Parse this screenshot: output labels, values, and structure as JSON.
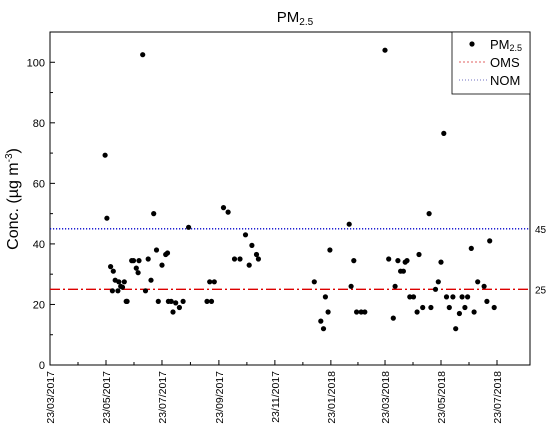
{
  "chart_data": {
    "type": "scatter",
    "title_main": "PM",
    "title_sub": "2.5",
    "ylabel_main": "Conc. (µg m",
    "ylabel_sup": "-3",
    "ylabel_end": ")",
    "ylim": [
      0,
      110
    ],
    "yticks": [
      0,
      20,
      40,
      60,
      80,
      100
    ],
    "xlim": [
      "2017-03-23",
      "2018-08-23"
    ],
    "xticks": [
      "23/03/2017",
      "23/05/2017",
      "23/07/2017",
      "23/09/2017",
      "23/11/2017",
      "23/01/2018",
      "23/03/2018",
      "23/05/2018",
      "23/07/2018"
    ],
    "xtick_dates": [
      "2017-03-23",
      "2017-05-23",
      "2017-07-23",
      "2017-09-23",
      "2017-11-23",
      "2018-01-23",
      "2018-03-23",
      "2018-05-23",
      "2018-07-23"
    ],
    "grid": false,
    "legend_position": "top-right",
    "legend": [
      {
        "key": "pm",
        "label_main": "PM",
        "label_sub": "2.5",
        "style": "marker"
      },
      {
        "key": "oms",
        "label": "OMS",
        "style": "dashed",
        "color": "#e06060"
      },
      {
        "key": "nom",
        "label": "NOM",
        "style": "dotted",
        "color": "#7070c0"
      }
    ],
    "reference_lines": [
      {
        "name": "NOM",
        "value": 45,
        "label": "45",
        "color": "#0000cc",
        "dash": "dotted"
      },
      {
        "name": "OMS",
        "value": 25,
        "label": "25",
        "color": "#dd0000",
        "dash": "dashdot"
      }
    ],
    "series": [
      {
        "name": "PM2.5",
        "color": "#000000",
        "points": [
          [
            "2017-05-22",
            69.3
          ],
          [
            "2017-05-24",
            48.5
          ],
          [
            "2017-05-28",
            32.5
          ],
          [
            "2017-05-31",
            31.0
          ],
          [
            "2017-05-30",
            24.5
          ],
          [
            "2017-06-02",
            28.0
          ],
          [
            "2017-06-05",
            24.5
          ],
          [
            "2017-06-06",
            27.5
          ],
          [
            "2017-06-08",
            26.0
          ],
          [
            "2017-06-10",
            25.7
          ],
          [
            "2017-06-12",
            27.5
          ],
          [
            "2017-06-14",
            21.0
          ],
          [
            "2017-06-15",
            21.0
          ],
          [
            "2017-06-20",
            34.5
          ],
          [
            "2017-06-22",
            34.5
          ],
          [
            "2017-06-25",
            32.0
          ],
          [
            "2017-06-27",
            30.5
          ],
          [
            "2017-06-28",
            34.5
          ],
          [
            "2017-07-02",
            102.5
          ],
          [
            "2017-07-05",
            24.5
          ],
          [
            "2017-07-08",
            35.0
          ],
          [
            "2017-07-11",
            28.0
          ],
          [
            "2017-07-14",
            50.0
          ],
          [
            "2017-07-17",
            38.0
          ],
          [
            "2017-07-19",
            21.0
          ],
          [
            "2017-07-23",
            33.0
          ],
          [
            "2017-07-27",
            36.5
          ],
          [
            "2017-07-29",
            37.0
          ],
          [
            "2017-07-30",
            21.0
          ],
          [
            "2017-08-02",
            21.0
          ],
          [
            "2017-08-04",
            17.5
          ],
          [
            "2017-08-07",
            20.5
          ],
          [
            "2017-08-11",
            19.0
          ],
          [
            "2017-08-15",
            21.0
          ],
          [
            "2017-08-21",
            45.5
          ],
          [
            "2017-09-10",
            21.0
          ],
          [
            "2017-09-13",
            27.5
          ],
          [
            "2017-09-15",
            21.0
          ],
          [
            "2017-09-18",
            27.5
          ],
          [
            "2017-09-28",
            52.0
          ],
          [
            "2017-10-03",
            50.5
          ],
          [
            "2017-10-10",
            35.0
          ],
          [
            "2017-10-16",
            35.0
          ],
          [
            "2017-10-22",
            43.0
          ],
          [
            "2017-10-26",
            33.0
          ],
          [
            "2017-10-29",
            39.5
          ],
          [
            "2017-11-03",
            36.5
          ],
          [
            "2017-11-05",
            35.0
          ],
          [
            "2018-01-05",
            27.5
          ],
          [
            "2018-01-12",
            14.5
          ],
          [
            "2018-01-15",
            12.0
          ],
          [
            "2018-01-17",
            22.5
          ],
          [
            "2018-01-20",
            17.5
          ],
          [
            "2018-01-22",
            38.0
          ],
          [
            "2018-02-12",
            46.5
          ],
          [
            "2018-02-14",
            26.0
          ],
          [
            "2018-02-17",
            34.5
          ],
          [
            "2018-02-20",
            17.5
          ],
          [
            "2018-02-25",
            17.5
          ],
          [
            "2018-03-01",
            17.5
          ],
          [
            "2018-03-23",
            104.0
          ],
          [
            "2018-03-27",
            35.0
          ],
          [
            "2018-04-01",
            15.5
          ],
          [
            "2018-04-03",
            26.0
          ],
          [
            "2018-04-06",
            34.5
          ],
          [
            "2018-04-09",
            31.0
          ],
          [
            "2018-04-12",
            31.0
          ],
          [
            "2018-04-14",
            34.0
          ],
          [
            "2018-04-16",
            34.5
          ],
          [
            "2018-04-19",
            22.5
          ],
          [
            "2018-04-23",
            22.5
          ],
          [
            "2018-04-27",
            17.5
          ],
          [
            "2018-04-29",
            36.5
          ],
          [
            "2018-05-03",
            19.0
          ],
          [
            "2018-05-10",
            50.0
          ],
          [
            "2018-05-12",
            19.0
          ],
          [
            "2018-05-17",
            25.0
          ],
          [
            "2018-05-20",
            27.5
          ],
          [
            "2018-05-23",
            34.0
          ],
          [
            "2018-05-26",
            76.5
          ],
          [
            "2018-05-29",
            22.5
          ],
          [
            "2018-06-01",
            19.0
          ],
          [
            "2018-06-05",
            22.5
          ],
          [
            "2018-06-08",
            12.0
          ],
          [
            "2018-06-12",
            17.0
          ],
          [
            "2018-06-15",
            22.5
          ],
          [
            "2018-06-18",
            19.0
          ],
          [
            "2018-06-21",
            22.5
          ],
          [
            "2018-06-25",
            38.5
          ],
          [
            "2018-06-28",
            17.5
          ],
          [
            "2018-07-02",
            27.5
          ],
          [
            "2018-07-09",
            26.0
          ],
          [
            "2018-07-12",
            21.0
          ],
          [
            "2018-07-15",
            41.0
          ],
          [
            "2018-07-20",
            19.0
          ]
        ]
      }
    ]
  }
}
